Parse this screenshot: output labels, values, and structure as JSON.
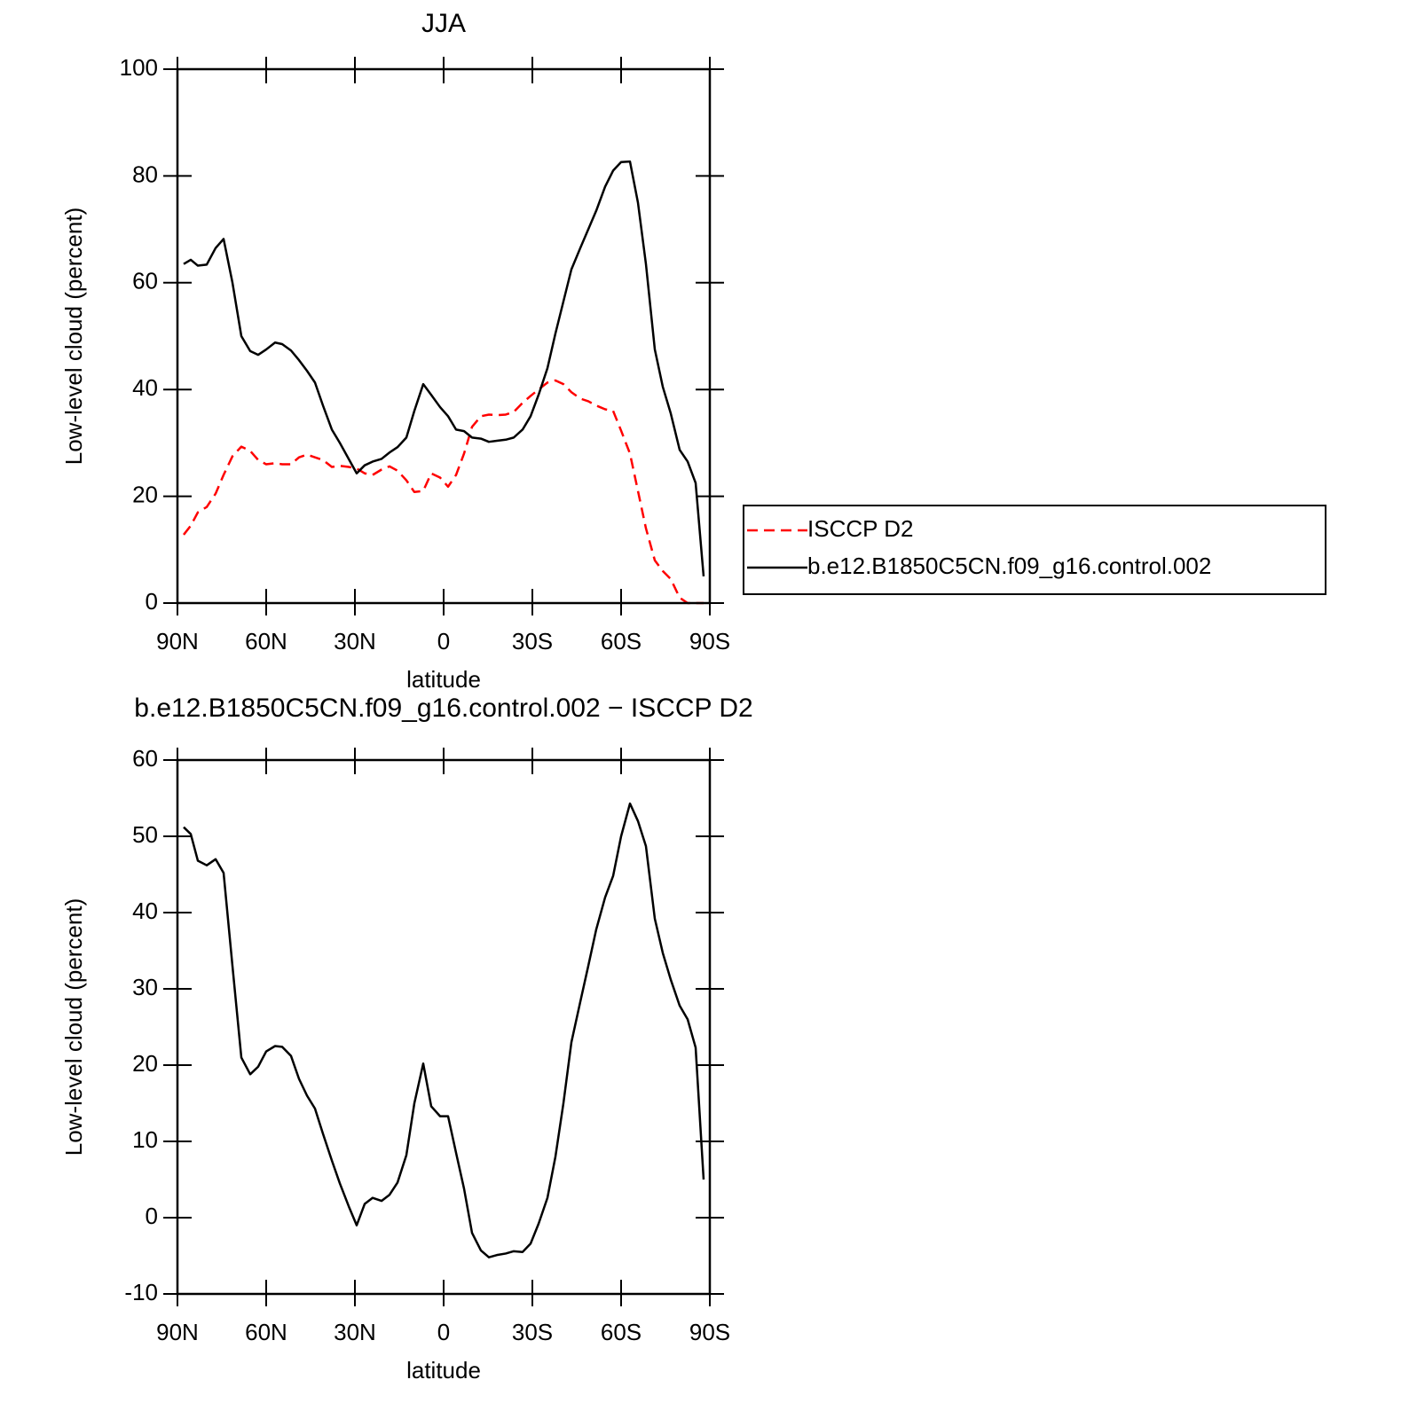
{
  "chart_data": [
    {
      "type": "line",
      "title": "JJA",
      "x_label": "latitude",
      "y_label": "Low-level cloud (percent)",
      "xlim": [
        90,
        -90
      ],
      "xticks": [
        {
          "value": 90,
          "label": "90N"
        },
        {
          "value": 60,
          "label": "60N"
        },
        {
          "value": 30,
          "label": "30N"
        },
        0,
        {
          "value": -30,
          "label": "30S"
        },
        {
          "value": -60,
          "label": "60S"
        },
        {
          "value": -90,
          "label": "90S"
        }
      ],
      "ylim": [
        0,
        100
      ],
      "yticks": [
        0,
        20,
        40,
        60,
        80,
        100
      ],
      "legend": "right",
      "x": [
        87.9,
        85.5,
        83.1,
        80.1,
        77.1,
        74.4,
        71.4,
        68.4,
        65.4,
        62.7,
        60,
        57,
        54.6,
        51.6,
        48.9,
        46.2,
        43.5,
        40.8,
        37.8,
        35.1,
        32.1,
        29.4,
        26.7,
        24,
        21,
        18.3,
        15.6,
        12.6,
        9.9,
        6.9,
        4.2,
        1.2,
        -1.5,
        -4.2,
        -6.9,
        -9.6,
        -12.6,
        -15.3,
        -18,
        -21,
        -23.7,
        -26.7,
        -29.4,
        -32.1,
        -35.1,
        -37.8,
        -40.5,
        -43.2,
        -46.2,
        -48.9,
        -51.6,
        -54.6,
        -57.3,
        -60,
        -63,
        -65.7,
        -68.4,
        -71.4,
        -74.1,
        -76.8,
        -79.8,
        -82.5,
        -85.2,
        -87.9
      ],
      "series": [
        {
          "name": "ISCCP D2",
          "color": "#ff0000",
          "line_style": "dashed",
          "values": [
            12.8,
            14.5,
            17,
            18,
            20.5,
            24,
            27.5,
            29.3,
            28.5,
            26.8,
            26,
            26.2,
            26,
            26,
            27.3,
            27.8,
            27.3,
            26.8,
            25.5,
            25.7,
            25.5,
            25.2,
            24.3,
            24,
            25,
            25.6,
            24.8,
            23,
            20.8,
            21,
            24.3,
            23.5,
            21.8,
            24,
            28,
            33,
            35,
            35.3,
            35.2,
            35.3,
            35.8,
            37.5,
            38.8,
            40,
            41.3,
            41.7,
            41,
            39.5,
            38.3,
            37.8,
            37,
            36.3,
            36,
            32.3,
            28,
            21,
            14,
            8,
            6,
            4.5,
            1,
            0,
            0,
            0
          ]
        },
        {
          "name": "b.e12.B1850C5CN.f09_g16.control.002",
          "color": "#000000",
          "line_style": "solid",
          "values": [
            63.5,
            64.3,
            63.2,
            63.4,
            66.5,
            68.2,
            60,
            50,
            47.2,
            46.5,
            47.5,
            48.8,
            48.5,
            47.3,
            45.5,
            43.5,
            41.3,
            37,
            32.5,
            30,
            27,
            24.3,
            25.8,
            26.5,
            27,
            28.2,
            29.2,
            31,
            36,
            41,
            39,
            36.7,
            35,
            32.5,
            32.2,
            31,
            30.8,
            30.2,
            30.4,
            30.6,
            31,
            32.5,
            35,
            39,
            44,
            50.5,
            56.5,
            62.5,
            66.5,
            70,
            73.5,
            78,
            81,
            82.6,
            82.7,
            75,
            63.5,
            47.5,
            40.5,
            35.5,
            28.7,
            26.5,
            22.5,
            5
          ]
        }
      ]
    },
    {
      "type": "line",
      "title": "b.e12.B1850C5CN.f09_g16.control.002 − ISCCP D2",
      "x_label": "latitude",
      "y_label": "Low-level cloud (percent)",
      "xlim": [
        90,
        -90
      ],
      "xticks": [
        {
          "value": 90,
          "label": "90N"
        },
        {
          "value": 60,
          "label": "60N"
        },
        {
          "value": 30,
          "label": "30N"
        },
        0,
        {
          "value": -30,
          "label": "30S"
        },
        {
          "value": -60,
          "label": "60S"
        },
        {
          "value": -90,
          "label": "90S"
        }
      ],
      "ylim": [
        -10,
        60
      ],
      "yticks": [
        -10,
        0,
        10,
        20,
        30,
        40,
        50,
        60
      ],
      "x": [
        87.9,
        85.5,
        83.1,
        80.1,
        77.1,
        74.4,
        71.4,
        68.4,
        65.4,
        62.7,
        60,
        57,
        54.6,
        51.6,
        48.9,
        46.2,
        43.5,
        40.8,
        37.8,
        35.1,
        32.1,
        29.4,
        26.7,
        24,
        21,
        18.3,
        15.6,
        12.6,
        9.9,
        6.9,
        4.2,
        1.2,
        -1.5,
        -4.2,
        -6.9,
        -9.6,
        -12.6,
        -15.3,
        -18,
        -21,
        -23.7,
        -26.7,
        -29.4,
        -32.1,
        -35.1,
        -37.8,
        -40.5,
        -43.2,
        -46.2,
        -48.9,
        -51.6,
        -54.6,
        -57.3,
        -60,
        -63,
        -65.7,
        -68.4,
        -71.4,
        -74.1,
        -76.8,
        -79.8,
        -82.5,
        -85.2,
        -87.9
      ],
      "series": [
        {
          "color": "#000000",
          "line_style": "solid",
          "values": [
            51.2,
            50.3,
            46.8,
            46.2,
            47,
            45.2,
            33,
            21,
            18.8,
            19.8,
            21.8,
            22.5,
            22.4,
            21.2,
            18.2,
            16,
            14.3,
            11,
            7.5,
            4.5,
            1.5,
            -1,
            1.8,
            2.6,
            2.2,
            3,
            4.6,
            8.2,
            15,
            20.2,
            14.6,
            13.3,
            13.3,
            8.5,
            3.8,
            -2,
            -4.3,
            -5.2,
            -4.9,
            -4.7,
            -4.4,
            -4.5,
            -3.4,
            -0.8,
            2.6,
            8,
            15,
            23,
            28.3,
            33,
            37.8,
            42,
            44.8,
            50,
            54.3,
            52,
            48.7,
            39.2,
            34.7,
            31.2,
            27.8,
            26,
            22.3,
            5
          ]
        }
      ]
    }
  ]
}
